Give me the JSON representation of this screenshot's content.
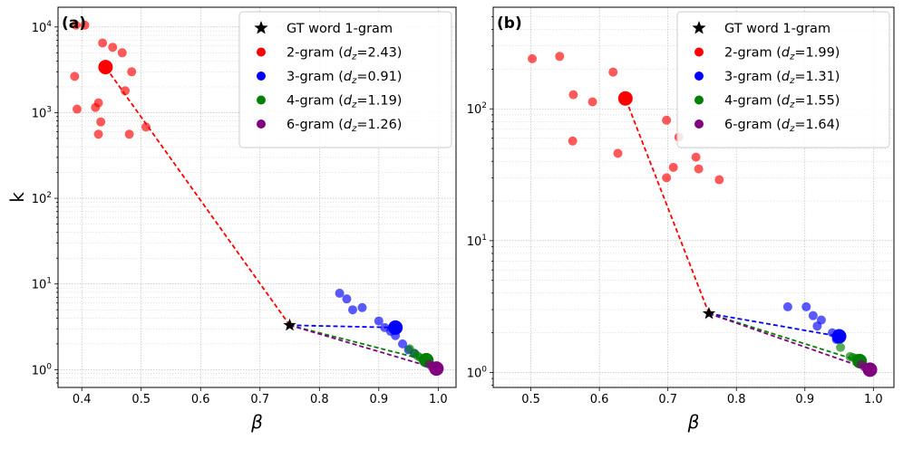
{
  "colors": {
    "gt": "#000000",
    "2-gram": "#ff0000",
    "3-gram": "#0000ff",
    "4-gram": "#008000",
    "6-gram": "#800080"
  },
  "chart_data": [
    {
      "type": "scatter",
      "panel_label": "(a)",
      "xlabel": "β",
      "ylabel": "k",
      "xscale": "linear",
      "yscale": "log",
      "xlim": [
        0.36,
        1.03
      ],
      "ylim": [
        0.62,
        17000
      ],
      "xticks": [
        0.4,
        0.5,
        0.6,
        0.7,
        0.8,
        0.9,
        1.0
      ],
      "xtick_labels": [
        "0.4",
        "0.5",
        "0.6",
        "0.7",
        "0.8",
        "0.9",
        "1.0"
      ],
      "yticks": [
        1,
        10,
        100,
        1000,
        10000
      ],
      "ytick_labels": [
        {
          "base": "10",
          "exp": "0"
        },
        {
          "base": "10",
          "exp": "1"
        },
        {
          "base": "10",
          "exp": "2"
        },
        {
          "base": "10",
          "exp": "3"
        },
        {
          "base": "10",
          "exp": "4"
        }
      ],
      "grid": true,
      "legend_position": "top-right",
      "gt": {
        "name": "GT word 1-gram",
        "x": 0.75,
        "y": 3.3
      },
      "series": [
        {
          "key": "2-gram",
          "legend_prefix": "2-gram (",
          "dz_value": "=2.43)",
          "centroid": {
            "x": 0.44,
            "y": 3400
          },
          "points": [
            [
              0.39,
              10500
            ],
            [
              0.405,
              10500
            ],
            [
              0.435,
              6500
            ],
            [
              0.452,
              5800
            ],
            [
              0.468,
              5000
            ],
            [
              0.484,
              3000
            ],
            [
              0.388,
              2650
            ],
            [
              0.473,
              1800
            ],
            [
              0.428,
              1300
            ],
            [
              0.423,
              1150
            ],
            [
              0.392,
              1100
            ],
            [
              0.432,
              780
            ],
            [
              0.508,
              680
            ],
            [
              0.428,
              560
            ],
            [
              0.48,
              560
            ]
          ]
        },
        {
          "key": "3-gram",
          "legend_prefix": "3-gram (",
          "dz_value": "=0.91)",
          "centroid": {
            "x": 0.928,
            "y": 3.1
          },
          "points": [
            [
              0.834,
              7.8
            ],
            [
              0.846,
              6.7
            ],
            [
              0.856,
              5.0
            ],
            [
              0.872,
              5.3
            ],
            [
              0.9,
              3.7
            ],
            [
              0.91,
              3.1
            ],
            [
              0.92,
              2.8
            ],
            [
              0.928,
              2.5
            ],
            [
              0.94,
              2.0
            ],
            [
              0.95,
              1.7
            ],
            [
              0.96,
              1.55
            ]
          ]
        },
        {
          "key": "4-gram",
          "legend_prefix": "4-gram (",
          "dz_value": "=1.19)",
          "centroid": {
            "x": 0.98,
            "y": 1.29
          },
          "points": [
            [
              0.952,
              1.75
            ],
            [
              0.96,
              1.55
            ],
            [
              0.965,
              1.45
            ],
            [
              0.97,
              1.38
            ],
            [
              0.975,
              1.32
            ],
            [
              0.978,
              1.28
            ],
            [
              0.985,
              1.22
            ]
          ]
        },
        {
          "key": "6-gram",
          "legend_prefix": "6-gram (",
          "dz_value": "=1.26)",
          "centroid": {
            "x": 0.997,
            "y": 1.03
          },
          "points": [
            [
              0.985,
              1.15
            ],
            [
              0.99,
              1.08
            ],
            [
              0.995,
              1.05
            ],
            [
              0.998,
              1.02
            ],
            [
              1.0,
              1.0
            ],
            [
              0.992,
              1.1
            ]
          ]
        }
      ]
    },
    {
      "type": "scatter",
      "panel_label": "(b)",
      "xlabel": "β",
      "ylabel": "",
      "xscale": "linear",
      "yscale": "log",
      "xlim": [
        0.445,
        1.03
      ],
      "ylim": [
        0.77,
        590
      ],
      "xticks": [
        0.5,
        0.6,
        0.7,
        0.8,
        0.9,
        1.0
      ],
      "xtick_labels": [
        "0.5",
        "0.6",
        "0.7",
        "0.8",
        "0.9",
        "1.0"
      ],
      "yticks": [
        1,
        10,
        100
      ],
      "ytick_labels": [
        {
          "base": "10",
          "exp": "0"
        },
        {
          "base": "10",
          "exp": "1"
        },
        {
          "base": "10",
          "exp": "2"
        }
      ],
      "grid": true,
      "legend_position": "top-right",
      "gt": {
        "name": "GT word 1-gram",
        "x": 0.76,
        "y": 2.8
      },
      "series": [
        {
          "key": "2-gram",
          "legend_prefix": "2-gram (",
          "dz_value": "=1.99)",
          "centroid": {
            "x": 0.638,
            "y": 120
          },
          "points": [
            [
              0.502,
              240
            ],
            [
              0.542,
              250
            ],
            [
              0.562,
              128
            ],
            [
              0.59,
              113
            ],
            [
              0.62,
              190
            ],
            [
              0.561,
              57
            ],
            [
              0.627,
              46
            ],
            [
              0.698,
              82
            ],
            [
              0.716,
              61
            ],
            [
              0.741,
              43
            ],
            [
              0.708,
              36
            ],
            [
              0.745,
              35
            ],
            [
              0.698,
              30
            ],
            [
              0.775,
              29
            ]
          ]
        },
        {
          "key": "3-gram",
          "legend_prefix": "3-gram (",
          "dz_value": "=1.31)",
          "centroid": {
            "x": 0.95,
            "y": 1.88
          },
          "points": [
            [
              0.875,
              3.15
            ],
            [
              0.902,
              3.15
            ],
            [
              0.912,
              2.7
            ],
            [
              0.924,
              2.5
            ],
            [
              0.918,
              2.25
            ],
            [
              0.94,
              2.0
            ],
            [
              0.948,
              1.92
            ],
            [
              0.952,
              1.85
            ],
            [
              0.946,
              1.78
            ]
          ]
        },
        {
          "key": "4-gram",
          "legend_prefix": "4-gram (",
          "dz_value": "=1.55)",
          "centroid": {
            "x": 0.98,
            "y": 1.22
          },
          "points": [
            [
              0.952,
              1.55
            ],
            [
              0.966,
              1.32
            ],
            [
              0.97,
              1.3
            ],
            [
              0.975,
              1.28
            ],
            [
              0.978,
              1.26
            ],
            [
              0.984,
              1.2
            ]
          ]
        },
        {
          "key": "6-gram",
          "legend_prefix": "6-gram (",
          "dz_value": "=1.64)",
          "centroid": {
            "x": 0.995,
            "y": 1.05
          },
          "points": [
            [
              0.982,
              1.15
            ],
            [
              0.987,
              1.1
            ],
            [
              0.99,
              1.08
            ],
            [
              0.995,
              1.05
            ],
            [
              0.998,
              1.03
            ]
          ]
        }
      ]
    }
  ]
}
